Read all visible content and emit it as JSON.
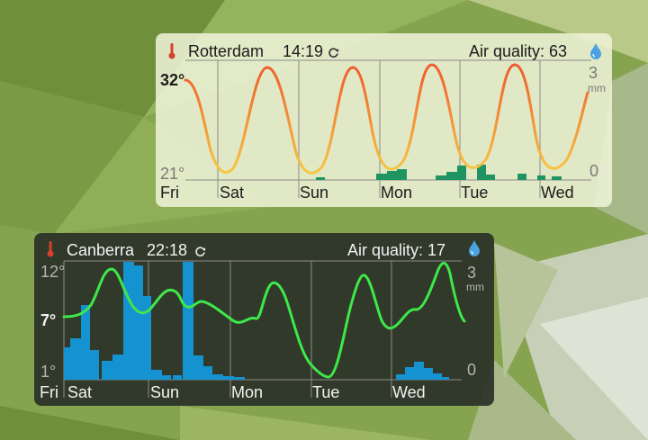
{
  "colors": {
    "rotterdam_curve_top": "#ef5a2a",
    "rotterdam_curve_bottom": "#f6c844",
    "rotterdam_rain": "#1e9463",
    "canberra_curve": "#3ee84a",
    "canberra_rain": "#1592d0",
    "thermometer": "#d6402f",
    "raindrop": "#4aa3e0"
  },
  "widgets": [
    {
      "city": "Rotterdam",
      "time": "14:19",
      "air_quality": "Air quality: 63",
      "temp_max": "32°",
      "temp_min": "21°",
      "rain_max": "3",
      "rain_unit": "mm",
      "rain_min": "0",
      "days": [
        "Fri",
        "Sat",
        "Sun",
        "Mon",
        "Tue",
        "Wed"
      ],
      "icons": [
        "thermometer-icon",
        "refresh-icon",
        "raindrop-icon"
      ]
    },
    {
      "city": "Canberra",
      "time": "22:18",
      "air_quality": "Air quality: 17",
      "temp_max": "12°",
      "temp_now": "7°",
      "temp_min": "1°",
      "rain_max": "3",
      "rain_unit": "mm",
      "rain_min": "0",
      "days": [
        "Fri",
        "Sat",
        "Sun",
        "Mon",
        "Tue",
        "Wed"
      ],
      "icons": [
        "thermometer-icon",
        "refresh-icon",
        "raindrop-icon"
      ]
    }
  ]
}
